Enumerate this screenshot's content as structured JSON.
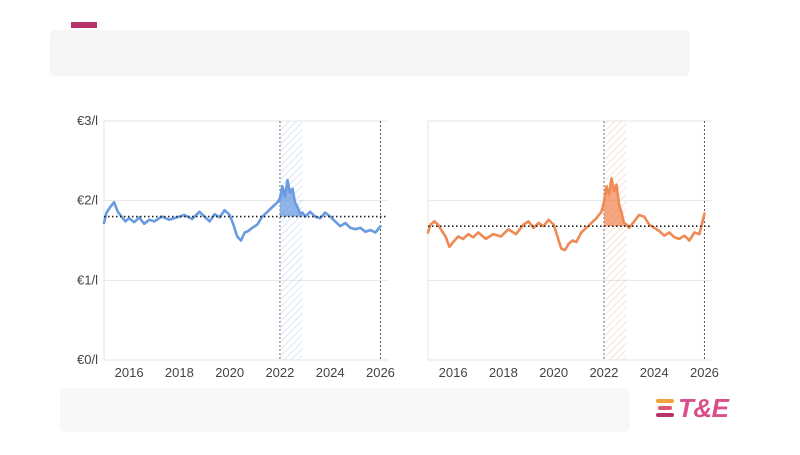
{
  "chart_data": [
    {
      "type": "line",
      "x_ticks": [
        "2016",
        "2018",
        "2020",
        "2022",
        "2024",
        "2026"
      ],
      "y_ticks": [
        "€0/l",
        "€1/l",
        "€2/l",
        "€3/l"
      ],
      "xlim": [
        2015.0,
        2026.3
      ],
      "ylim": [
        0,
        3
      ],
      "average": 1.8,
      "highlight_period": [
        2022.0,
        2022.9
      ],
      "marker_x": 2026.0,
      "color": "#6a9be0",
      "series": [
        {
          "x": [
            2015.0,
            2015.1,
            2015.25,
            2015.4,
            2015.55,
            2015.7,
            2015.85,
            2016.0,
            2016.2,
            2016.4,
            2016.6,
            2016.8,
            2017.0,
            2017.3,
            2017.6,
            2017.9,
            2018.2,
            2018.5,
            2018.8,
            2019.0,
            2019.2,
            2019.4,
            2019.6,
            2019.8,
            2020.0,
            2020.15,
            2020.3,
            2020.45,
            2020.6,
            2020.75,
            2020.9,
            2021.1,
            2021.3,
            2021.5,
            2021.7,
            2021.9,
            2022.0,
            2022.1,
            2022.2,
            2022.3,
            2022.4,
            2022.5,
            2022.6,
            2022.7,
            2022.8,
            2022.9,
            2023.0,
            2023.2,
            2023.4,
            2023.6,
            2023.8,
            2024.0,
            2024.2,
            2024.4,
            2024.6,
            2024.8,
            2025.0,
            2025.2,
            2025.4,
            2025.6,
            2025.8,
            2026.0
          ],
          "y": [
            1.72,
            1.85,
            1.92,
            1.98,
            1.86,
            1.8,
            1.74,
            1.78,
            1.73,
            1.79,
            1.71,
            1.76,
            1.74,
            1.8,
            1.76,
            1.79,
            1.82,
            1.77,
            1.86,
            1.8,
            1.74,
            1.83,
            1.79,
            1.88,
            1.82,
            1.7,
            1.55,
            1.5,
            1.6,
            1.62,
            1.66,
            1.7,
            1.8,
            1.86,
            1.92,
            1.98,
            2.03,
            2.18,
            2.05,
            2.26,
            2.1,
            2.15,
            1.98,
            1.92,
            1.84,
            1.85,
            1.8,
            1.86,
            1.8,
            1.78,
            1.85,
            1.8,
            1.74,
            1.68,
            1.72,
            1.66,
            1.64,
            1.66,
            1.61,
            1.63,
            1.6,
            1.68
          ]
        }
      ]
    },
    {
      "type": "line",
      "x_ticks": [
        "2016",
        "2018",
        "2020",
        "2022",
        "2024",
        "2026"
      ],
      "y_ticks": [],
      "xlim": [
        2015.0,
        2026.3
      ],
      "ylim": [
        0,
        3
      ],
      "average": 1.68,
      "highlight_period": [
        2022.0,
        2022.9
      ],
      "marker_x": 2026.0,
      "color": "#f08a55",
      "series": [
        {
          "x": [
            2015.0,
            2015.1,
            2015.25,
            2015.4,
            2015.55,
            2015.7,
            2015.85,
            2016.0,
            2016.2,
            2016.4,
            2016.6,
            2016.8,
            2017.0,
            2017.3,
            2017.6,
            2017.9,
            2018.2,
            2018.5,
            2018.8,
            2019.0,
            2019.2,
            2019.4,
            2019.6,
            2019.8,
            2020.0,
            2020.15,
            2020.3,
            2020.45,
            2020.6,
            2020.75,
            2020.9,
            2021.1,
            2021.3,
            2021.5,
            2021.7,
            2021.9,
            2022.0,
            2022.1,
            2022.2,
            2022.3,
            2022.4,
            2022.5,
            2022.6,
            2022.7,
            2022.8,
            2022.9,
            2023.0,
            2023.2,
            2023.4,
            2023.6,
            2023.8,
            2024.0,
            2024.2,
            2024.4,
            2024.6,
            2024.8,
            2025.0,
            2025.2,
            2025.4,
            2025.6,
            2025.8,
            2026.0
          ],
          "y": [
            1.6,
            1.7,
            1.74,
            1.7,
            1.62,
            1.55,
            1.42,
            1.48,
            1.55,
            1.52,
            1.58,
            1.54,
            1.6,
            1.52,
            1.58,
            1.55,
            1.64,
            1.58,
            1.7,
            1.74,
            1.66,
            1.72,
            1.68,
            1.76,
            1.7,
            1.55,
            1.4,
            1.38,
            1.46,
            1.5,
            1.48,
            1.6,
            1.66,
            1.72,
            1.78,
            1.86,
            1.98,
            2.18,
            2.08,
            2.28,
            2.12,
            2.2,
            1.96,
            1.85,
            1.72,
            1.7,
            1.66,
            1.74,
            1.82,
            1.8,
            1.7,
            1.66,
            1.62,
            1.56,
            1.6,
            1.54,
            1.52,
            1.56,
            1.5,
            1.6,
            1.58,
            1.84
          ]
        }
      ]
    }
  ],
  "logo": {
    "text": "T&E",
    "color": "#d94f8a",
    "mark_colors": [
      "#f2a03d",
      "#e0556f",
      "#b8336a"
    ]
  },
  "colors": {
    "accent": "#b8336a",
    "grid": "#e6e6e6",
    "average_line": "#222222"
  }
}
